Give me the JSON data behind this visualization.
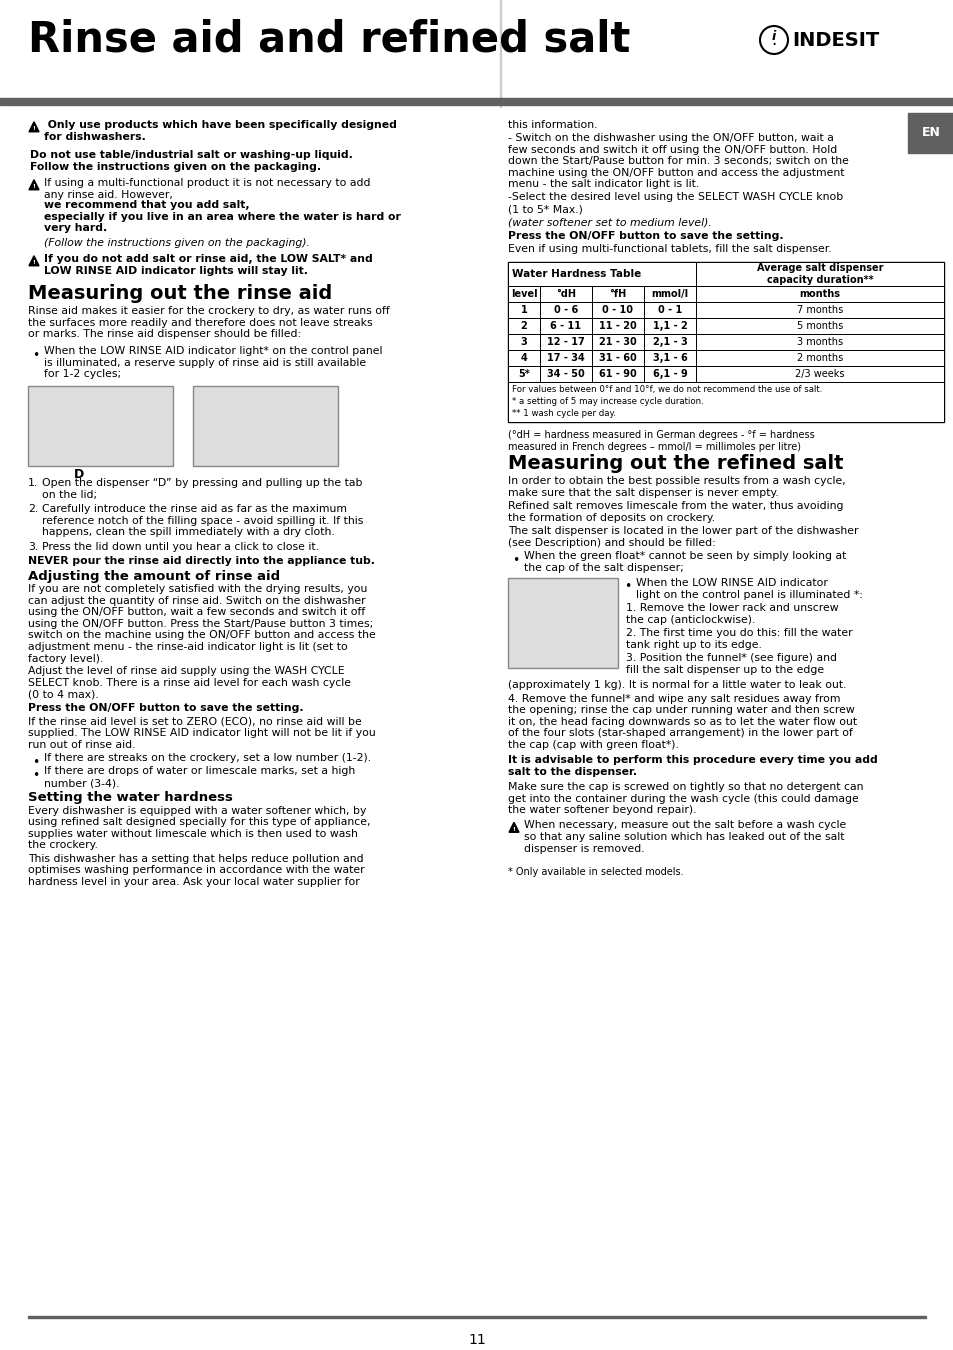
{
  "title": "Rinse aid and refined salt",
  "bg_color": "#ffffff",
  "page_number": "11",
  "lang_tag": "EN",
  "header_bar_color": "#606060",
  "en_bar_color": "#606060",
  "table_subheaders": [
    "level",
    "°dH",
    "°fH",
    "mmol/l",
    "months"
  ],
  "table_rows": [
    [
      "1",
      "0 - 6",
      "0 - 10",
      "0 - 1",
      "7 months"
    ],
    [
      "2",
      "6 - 11",
      "11 - 20",
      "1,1 - 2",
      "5 months"
    ],
    [
      "3",
      "12 - 17",
      "21 - 30",
      "2,1 - 3",
      "3 months"
    ],
    [
      "4",
      "17 - 34",
      "31 - 60",
      "3,1 - 6",
      "2 months"
    ],
    [
      "5*",
      "34 - 50",
      "61 - 90",
      "6,1 - 9",
      "2/3 weeks"
    ]
  ],
  "table_footnotes": [
    "For values between 0°f and 10°f, we do not recommend the use of salt.",
    "* a setting of 5 may increase cycle duration.",
    "** 1 wash cycle per day."
  ]
}
